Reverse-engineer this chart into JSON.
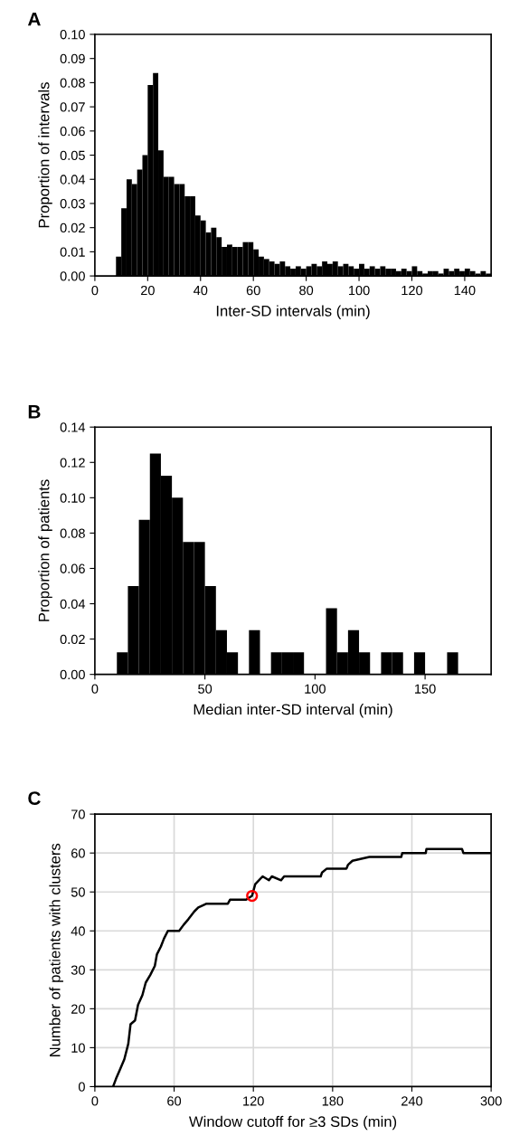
{
  "chart_data": [
    {
      "type": "histogram",
      "title": "A",
      "xlabel": "Inter-SD intervals (min)",
      "ylabel": "Proportion of intervals",
      "color": "#000000",
      "bins": [
        8,
        10,
        12,
        14,
        16,
        18,
        20,
        22,
        24,
        26,
        28,
        30,
        32,
        34,
        36,
        38,
        40,
        42,
        44,
        46,
        48,
        50,
        52,
        54,
        56,
        58,
        60,
        62,
        64,
        66,
        68,
        70,
        72,
        74,
        76,
        78,
        80,
        82,
        84,
        86,
        88,
        90,
        92,
        94,
        96,
        98,
        100,
        102,
        104,
        106,
        108,
        110,
        112,
        114,
        116,
        118,
        120,
        122,
        124,
        126,
        128,
        130,
        132,
        134,
        136,
        138,
        140,
        142,
        144,
        146,
        148,
        150
      ],
      "values": [
        0.008,
        0.028,
        0.04,
        0.038,
        0.044,
        0.05,
        0.079,
        0.084,
        0.052,
        0.041,
        0.041,
        0.038,
        0.038,
        0.033,
        0.033,
        0.025,
        0.023,
        0.018,
        0.02,
        0.016,
        0.012,
        0.013,
        0.012,
        0.012,
        0.014,
        0.014,
        0.011,
        0.008,
        0.007,
        0.006,
        0.005,
        0.006,
        0.004,
        0.003,
        0.004,
        0.003,
        0.004,
        0.005,
        0.004,
        0.006,
        0.005,
        0.006,
        0.004,
        0.005,
        0.004,
        0.003,
        0.005,
        0.003,
        0.004,
        0.003,
        0.004,
        0.003,
        0.003,
        0.002,
        0.003,
        0.002,
        0.004,
        0.002,
        0.001,
        0.002,
        0.002,
        0.001,
        0.003,
        0.002,
        0.003,
        0.002,
        0.003,
        0.002,
        0.001,
        0.002,
        0.001
      ],
      "xlim": [
        0,
        150
      ],
      "xticks": [
        0,
        20,
        40,
        60,
        80,
        100,
        120,
        140
      ],
      "ylim": [
        0,
        0.1
      ],
      "yticks": [
        {
          "value": 0,
          "label": "0.00"
        },
        {
          "value": 0.01,
          "label": "0.01"
        },
        {
          "value": 0.02,
          "label": "0.02"
        },
        {
          "value": 0.03,
          "label": "0.03"
        },
        {
          "value": 0.04,
          "label": "0.04"
        },
        {
          "value": 0.05,
          "label": "0.05"
        },
        {
          "value": 0.06,
          "label": "0.06"
        },
        {
          "value": 0.07,
          "label": "0.07"
        },
        {
          "value": 0.08,
          "label": "0.08"
        },
        {
          "value": 0.09,
          "label": "0.09"
        },
        {
          "value": 0.1,
          "label": "0.10"
        }
      ]
    },
    {
      "type": "histogram",
      "title": "B",
      "xlabel": "Median inter-SD interval (min)",
      "ylabel": "Proportion of patients",
      "color": "#000000",
      "bins": [
        10,
        15,
        20,
        25,
        30,
        35,
        40,
        45,
        50,
        55,
        60,
        65,
        70,
        75,
        80,
        85,
        90,
        95,
        100,
        105,
        110,
        115,
        120,
        125,
        130,
        135,
        140,
        145,
        150,
        155,
        160,
        165
      ],
      "values": [
        0.0125,
        0.05,
        0.0875,
        0.125,
        0.1125,
        0.1,
        0.075,
        0.075,
        0.05,
        0.025,
        0.0125,
        0,
        0.025,
        0,
        0.0125,
        0.0125,
        0.0125,
        0,
        0,
        0.0375,
        0.0125,
        0.025,
        0.0125,
        0,
        0.0125,
        0.0125,
        0,
        0.0125,
        0,
        0,
        0.0125
      ],
      "xlim": [
        0,
        180
      ],
      "xticks": [
        0,
        50,
        100,
        150
      ],
      "ylim": [
        0,
        0.14
      ],
      "yticks": [
        {
          "value": 0,
          "label": "0.00"
        },
        {
          "value": 0.02,
          "label": "0.02"
        },
        {
          "value": 0.04,
          "label": "0.04"
        },
        {
          "value": 0.06,
          "label": "0.06"
        },
        {
          "value": 0.08,
          "label": "0.08"
        },
        {
          "value": 0.1,
          "label": "0.10"
        },
        {
          "value": 0.12,
          "label": "0.12"
        },
        {
          "value": 0.14,
          "label": "0.14"
        }
      ]
    },
    {
      "type": "line",
      "title": "C",
      "xlabel": "Window cutoff for ≥3 SDs (min)",
      "ylabel": "Number of patients with clusters",
      "grid": true,
      "series": [
        {
          "type": "line",
          "color": "#000000",
          "x": [
            13.8,
            16,
            18.9,
            22.3,
            25.3,
            27,
            30.4,
            32.7,
            36,
            38.5,
            42,
            45.4,
            47,
            50,
            52.3,
            55.3,
            63.8,
            67.3,
            70.8,
            75.3,
            78.3,
            84.6,
            100.7,
            102.3,
            114.5,
            119,
            121.4,
            127,
            131.8,
            134,
            141,
            143.3,
            171,
            172,
            175.6,
            190.5,
            191.7,
            195,
            207.8,
            232,
            232.7,
            250.5,
            251,
            278,
            279,
            300
          ],
          "values": [
            0,
            2,
            4.3,
            7,
            11,
            16,
            17,
            21,
            23.5,
            26.7,
            28.7,
            31,
            34,
            36,
            38,
            40,
            40,
            41.6,
            43,
            45,
            46,
            47,
            47,
            48,
            48,
            49,
            52,
            54,
            53,
            54,
            53,
            54,
            54,
            55,
            56,
            56,
            57,
            58,
            59,
            59,
            60,
            60,
            61,
            61,
            60,
            60
          ]
        },
        {
          "type": "scatter",
          "color": "#ff0000",
          "marker": "circle",
          "x": [
            119
          ],
          "values": [
            49
          ]
        }
      ],
      "xlim": [
        0,
        300
      ],
      "xticks": [
        0,
        60,
        120,
        180,
        240,
        300
      ],
      "ylim": [
        0,
        70
      ],
      "yticks": [
        0,
        10,
        20,
        30,
        40,
        50,
        60,
        70
      ]
    }
  ]
}
